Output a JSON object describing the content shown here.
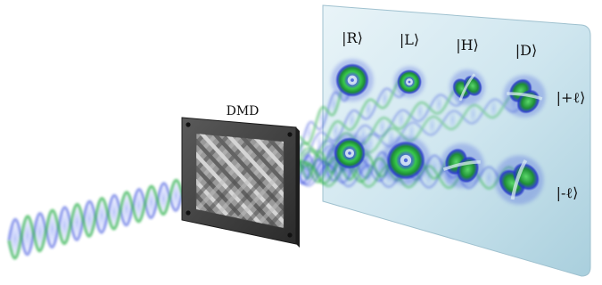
{
  "device": {
    "label": "DMD"
  },
  "columns": [
    {
      "label": "|R⟩",
      "pattern": "ring"
    },
    {
      "label": "|L⟩",
      "pattern": "ring"
    },
    {
      "label": "|H⟩",
      "pattern": "two-lobe"
    },
    {
      "label": "|D⟩",
      "pattern": "two-lobe"
    }
  ],
  "rows": [
    {
      "label": "|+ℓ⟩"
    },
    {
      "label": "|-ℓ⟩"
    }
  ],
  "colors": {
    "beam_green": "#2fb24a",
    "beam_blue": "#2b3fd8",
    "screen": "#cfe6ef",
    "frame": "#3d3d3d"
  }
}
